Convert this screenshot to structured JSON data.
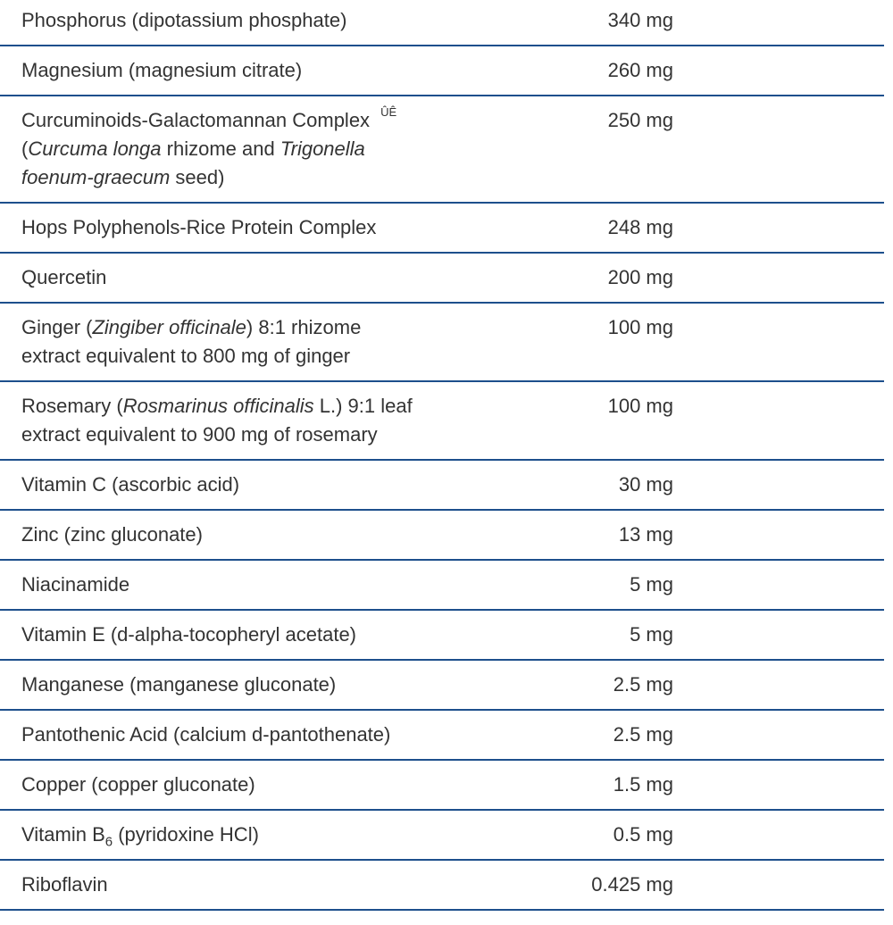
{
  "table": {
    "rows": [
      {
        "name": [
          "Phosphorus (dipotassium phosphate)"
        ],
        "amount": "340 mg"
      },
      {
        "name": [
          "Magnesium (magnesium citrate)"
        ],
        "amount": "260 mg"
      },
      {
        "name": [
          "Curcuminoids-Galactomannan Complex ",
          {
            "text": "ÛÊ",
            "sup": true
          },
          " (",
          {
            "text": "Curcuma longa",
            "italic": true
          },
          " rhizome and ",
          {
            "text": "Trigonella foenum-graecum",
            "italic": true
          },
          " seed)"
        ],
        "amount": "250 mg"
      },
      {
        "name": [
          "Hops Polyphenols-Rice Protein Complex"
        ],
        "amount": "248 mg"
      },
      {
        "name": [
          "Quercetin"
        ],
        "amount": "200 mg"
      },
      {
        "name": [
          "Ginger (",
          {
            "text": "Zingiber officinale",
            "italic": true
          },
          ") 8:1 rhizome extract equivalent to 800 mg of ginger"
        ],
        "amount": "100 mg"
      },
      {
        "name": [
          "Rosemary (",
          {
            "text": "Rosmarinus officinalis",
            "italic": true
          },
          " L.) 9:1 leaf extract equivalent to 900 mg of rosemary"
        ],
        "amount": "100 mg"
      },
      {
        "name": [
          "Vitamin C (ascorbic acid)"
        ],
        "amount": "30 mg"
      },
      {
        "name": [
          "Zinc (zinc gluconate)"
        ],
        "amount": "13 mg"
      },
      {
        "name": [
          "Niacinamide"
        ],
        "amount": "5 mg"
      },
      {
        "name": [
          "Vitamin E (d-alpha-tocopheryl acetate)"
        ],
        "amount": "5 mg"
      },
      {
        "name": [
          "Manganese (manganese gluconate)"
        ],
        "amount": "2.5 mg"
      },
      {
        "name": [
          "Pantothenic Acid (calcium d-pantothenate)"
        ],
        "amount": "2.5 mg"
      },
      {
        "name": [
          "Copper (copper gluconate)"
        ],
        "amount": "1.5 mg"
      },
      {
        "name": [
          "Vitamin B",
          {
            "text": "6",
            "sub": true
          },
          " (pyridoxine HCl)"
        ],
        "amount": "0.5 mg"
      },
      {
        "name": [
          "Riboflavin"
        ],
        "amount": "0.425 mg"
      }
    ]
  }
}
